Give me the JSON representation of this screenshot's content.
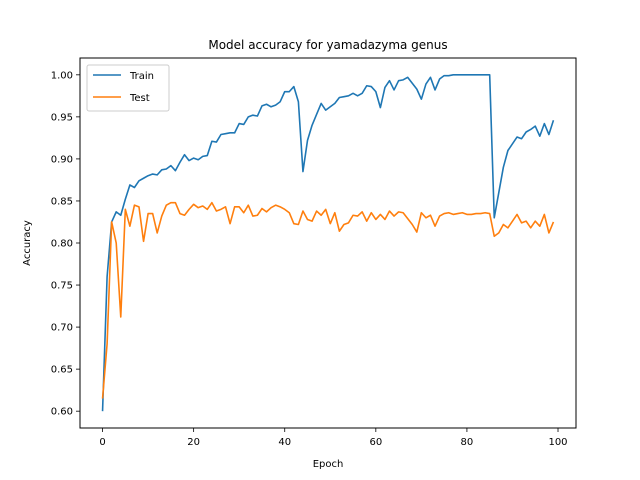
{
  "chart_data": {
    "type": "line",
    "title": "Model accuracy for yamadazyma genus",
    "xlabel": "Epoch",
    "ylabel": "Accuracy",
    "xlim": [
      -4.95,
      103.95
    ],
    "ylim": [
      0.58,
      1.02
    ],
    "xticks": [
      0,
      20,
      40,
      60,
      80,
      100
    ],
    "yticks": [
      0.6,
      0.65,
      0.7,
      0.75,
      0.8,
      0.85,
      0.9,
      0.95,
      1.0
    ],
    "ytick_labels": [
      "0.60",
      "0.65",
      "0.70",
      "0.75",
      "0.80",
      "0.85",
      "0.90",
      "0.95",
      "1.00"
    ],
    "grid": false,
    "legend": {
      "position": "top-left"
    },
    "series": [
      {
        "name": "Train",
        "color": "#1f77b4",
        "values": [
          0.6,
          0.76,
          0.825,
          0.837,
          0.833,
          0.852,
          0.869,
          0.866,
          0.874,
          0.877,
          0.88,
          0.882,
          0.881,
          0.887,
          0.888,
          0.892,
          0.886,
          0.896,
          0.905,
          0.898,
          0.901,
          0.899,
          0.903,
          0.904,
          0.921,
          0.92,
          0.929,
          0.93,
          0.931,
          0.931,
          0.942,
          0.941,
          0.95,
          0.952,
          0.951,
          0.963,
          0.965,
          0.962,
          0.964,
          0.968,
          0.98,
          0.98,
          0.986,
          0.968,
          0.885,
          0.922,
          0.94,
          0.953,
          0.966,
          0.958,
          0.962,
          0.966,
          0.973,
          0.974,
          0.975,
          0.978,
          0.975,
          0.978,
          0.987,
          0.986,
          0.98,
          0.961,
          0.985,
          0.993,
          0.982,
          0.993,
          0.994,
          0.997,
          0.99,
          0.983,
          0.971,
          0.989,
          0.997,
          0.982,
          0.995,
          0.999,
          0.999,
          1.0,
          1.0,
          1.0,
          1.0,
          1.0,
          1.0,
          1.0,
          1.0,
          1.0,
          0.83,
          0.86,
          0.89,
          0.91,
          0.918,
          0.926,
          0.924,
          0.932,
          0.935,
          0.939,
          0.927,
          0.942,
          0.929,
          0.946
        ]
      },
      {
        "name": "Test",
        "color": "#ff7f0e",
        "values": [
          0.615,
          0.68,
          0.825,
          0.8,
          0.712,
          0.84,
          0.82,
          0.845,
          0.843,
          0.802,
          0.835,
          0.835,
          0.812,
          0.832,
          0.845,
          0.848,
          0.848,
          0.835,
          0.833,
          0.84,
          0.846,
          0.842,
          0.844,
          0.84,
          0.848,
          0.838,
          0.84,
          0.843,
          0.823,
          0.843,
          0.843,
          0.836,
          0.845,
          0.832,
          0.833,
          0.841,
          0.837,
          0.842,
          0.845,
          0.843,
          0.84,
          0.836,
          0.823,
          0.822,
          0.838,
          0.828,
          0.826,
          0.838,
          0.833,
          0.84,
          0.823,
          0.836,
          0.814,
          0.822,
          0.824,
          0.833,
          0.832,
          0.837,
          0.826,
          0.836,
          0.828,
          0.834,
          0.828,
          0.838,
          0.832,
          0.837,
          0.836,
          0.829,
          0.822,
          0.813,
          0.836,
          0.83,
          0.833,
          0.82,
          0.832,
          0.835,
          0.836,
          0.834,
          0.835,
          0.836,
          0.834,
          0.834,
          0.835,
          0.835,
          0.836,
          0.835,
          0.808,
          0.812,
          0.822,
          0.818,
          0.826,
          0.834,
          0.824,
          0.826,
          0.818,
          0.826,
          0.82,
          0.834,
          0.812,
          0.825
        ]
      }
    ]
  }
}
